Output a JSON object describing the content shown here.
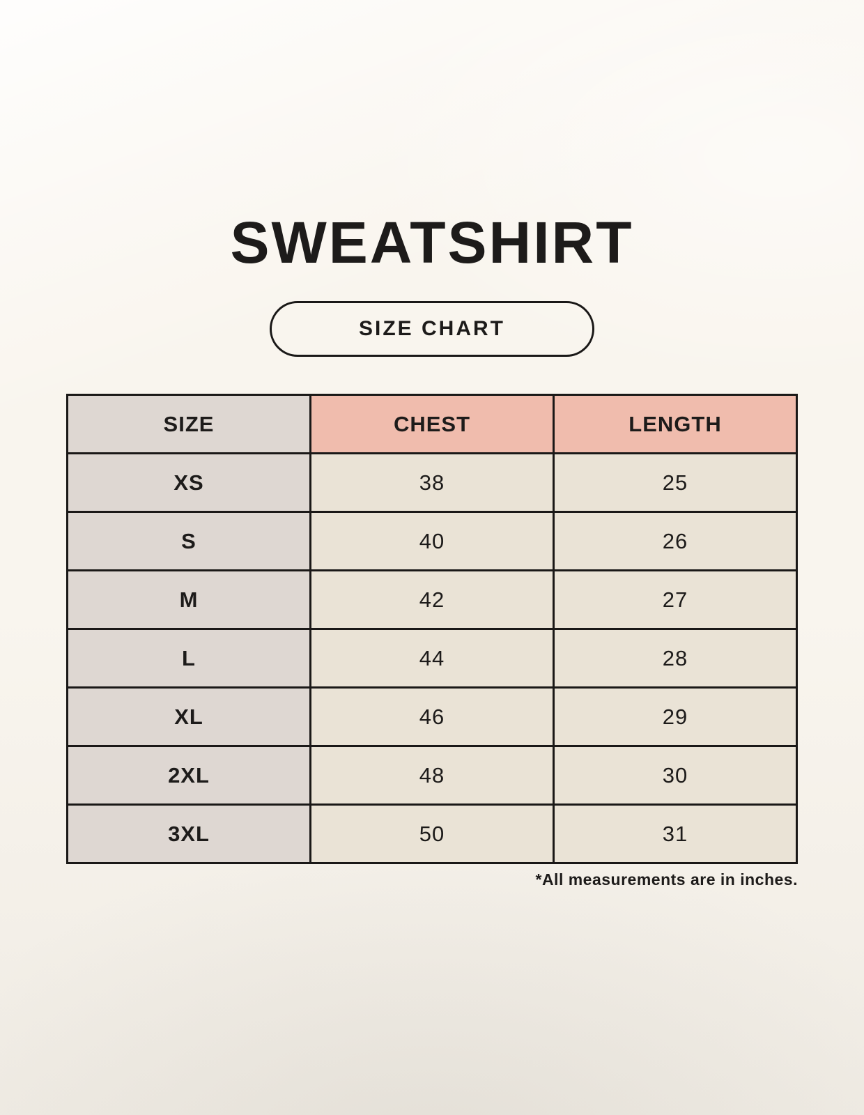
{
  "page": {
    "title": "SWEATSHIRT",
    "size_chart_label": "SIZE CHART",
    "footnote": "*All measurements are in inches."
  },
  "chart_data": {
    "type": "table",
    "title": "SWEATSHIRT",
    "subtitle": "SIZE CHART",
    "columns": [
      "SIZE",
      "CHEST",
      "LENGTH"
    ],
    "rows": [
      {
        "size": "XS",
        "chest": 38,
        "length": 25
      },
      {
        "size": "S",
        "chest": 40,
        "length": 26
      },
      {
        "size": "M",
        "chest": 42,
        "length": 27
      },
      {
        "size": "L",
        "chest": 44,
        "length": 28
      },
      {
        "size": "XL",
        "chest": 46,
        "length": 29
      },
      {
        "size": "2XL",
        "chest": 48,
        "length": 30
      },
      {
        "size": "3XL",
        "chest": 50,
        "length": 31
      }
    ],
    "footnote": "*All measurements are in inches."
  },
  "colors": {
    "background": "#f9f5ee",
    "size_column_bg": "#ded7d2",
    "measure_header_bg": "#f0bcad",
    "data_cell_bg": "#eae3d6",
    "border": "#1a1817",
    "text": "#1d1b1a"
  }
}
